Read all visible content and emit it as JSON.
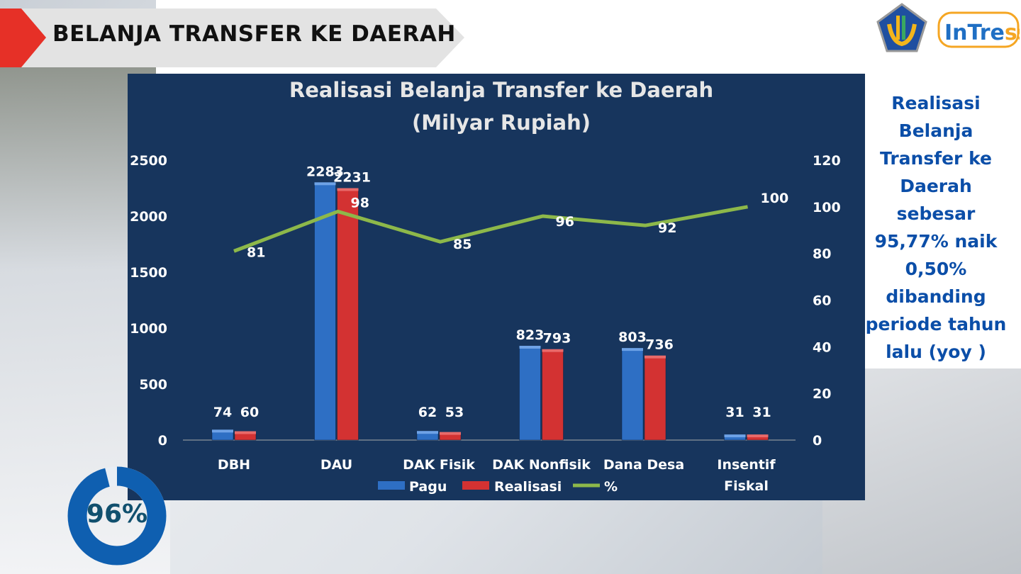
{
  "header": {
    "title": "BELANJA TRANSFER KE DAERAH",
    "logo_text": "InTress"
  },
  "side_note": "Realisasi Belanja Transfer ke Daerah sebesar 95,77% naik 0,50% dibanding periode tahun lalu (yoy )",
  "donut": {
    "label": "96%",
    "value": 96
  },
  "colors": {
    "panel": "#17355d",
    "pagu": "#2e6fc4",
    "realisasi": "#d33232",
    "line": "#8db84a",
    "banner_red": "#e63027"
  },
  "chart_data": {
    "type": "bar",
    "title": "Realisasi Belanja Transfer ke Daerah",
    "subtitle": "(Milyar Rupiah)",
    "categories": [
      "DBH",
      "DAU",
      "DAK Fisik",
      "DAK Nonfisik",
      "Dana Desa",
      "Insentif Fiskal"
    ],
    "series": [
      {
        "name": "Pagu",
        "values": [
          74,
          2283,
          62,
          823,
          803,
          31
        ],
        "axis": "left"
      },
      {
        "name": "Realisasi",
        "values": [
          60,
          2231,
          53,
          793,
          736,
          31
        ],
        "axis": "left"
      },
      {
        "name": "%",
        "type": "line",
        "values": [
          81,
          98,
          85,
          96,
          92,
          100
        ],
        "axis": "right"
      }
    ],
    "ylim": [
      0,
      2500
    ],
    "y_ticks": [
      "0",
      "500",
      "1000",
      "1500",
      "2000",
      "2500"
    ],
    "y2lim": [
      0,
      120
    ],
    "y2_ticks": [
      "0",
      "20",
      "40",
      "60",
      "80",
      "100",
      "120"
    ],
    "legend": "bottom",
    "grid": false
  }
}
